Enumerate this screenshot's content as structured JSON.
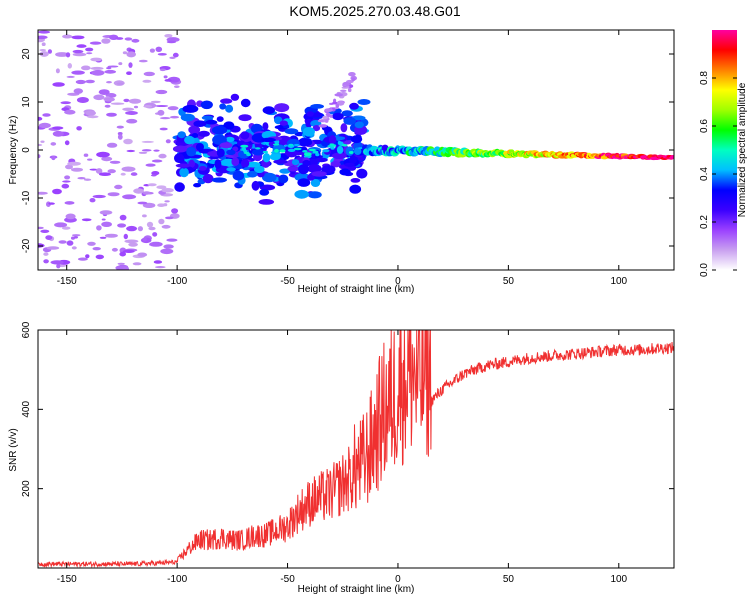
{
  "title": "KOM5.2025.270.03.48.G01",
  "chart_data": [
    {
      "id": "spectrogram",
      "type": "heatmap",
      "xlabel": "Height of straight line (km)",
      "ylabel": "Frequency (Hz)",
      "xlim": [
        -163,
        125
      ],
      "ylim": [
        -25,
        25
      ],
      "xticks": [
        -150,
        -100,
        -50,
        0,
        50,
        100
      ],
      "yticks": [
        -20,
        -10,
        0,
        10,
        20
      ],
      "colorbar": {
        "label": "Normalized spectral amplitude",
        "range": [
          0,
          1
        ],
        "ticks": [
          0.0,
          0.2,
          0.4,
          0.6,
          0.8
        ],
        "colors": [
          "#ffffff",
          "#c9a0f0",
          "#9a40ff",
          "#3a00ff",
          "#0000ff",
          "#00c0ff",
          "#00ffc0",
          "#00ff00",
          "#a0ff00",
          "#ffff00",
          "#ff8000",
          "#ff0000",
          "#ff00a0"
        ]
      },
      "regions": [
        {
          "name": "scattered noise",
          "x": [
            -163,
            -100
          ],
          "freq": [
            -25,
            25
          ],
          "amplitude": 0.12
        },
        {
          "name": "noise cluster",
          "x": [
            -100,
            -15
          ],
          "freq": [
            -8,
            5
          ],
          "amplitude": 0.3
        },
        {
          "name": "noise streak",
          "x": [
            -35,
            -20
          ],
          "freq": [
            5,
            15
          ],
          "amplitude": 0.12
        },
        {
          "name": "signal trace",
          "x": [
            -15,
            125
          ],
          "freq": [
            -2,
            0.5
          ],
          "amplitude": 0.85
        }
      ]
    },
    {
      "id": "snr",
      "type": "line",
      "xlabel": "Height of straight line (km)",
      "ylabel": "SNR (v/v)",
      "xlim": [
        -163,
        125
      ],
      "ylim": [
        0,
        600
      ],
      "xticks": [
        -150,
        -100,
        -50,
        0,
        50,
        100
      ],
      "yticks": [
        200,
        400,
        600
      ],
      "color": "#f03030",
      "series": [
        {
          "name": "SNR",
          "x": [
            -163,
            -150,
            -140,
            -130,
            -120,
            -110,
            -100,
            -95,
            -90,
            -85,
            -80,
            -75,
            -70,
            -65,
            -60,
            -55,
            -50,
            -45,
            -40,
            -35,
            -30,
            -25,
            -20,
            -17,
            -15,
            -12,
            -10,
            -8,
            -5,
            -2,
            0,
            3,
            6,
            9,
            12,
            15,
            20,
            25,
            30,
            35,
            40,
            50,
            60,
            70,
            80,
            90,
            100,
            110,
            120,
            125
          ],
          "values": [
            10,
            10,
            10,
            10,
            10,
            12,
            15,
            40,
            60,
            60,
            65,
            60,
            60,
            70,
            70,
            80,
            90,
            120,
            140,
            150,
            160,
            180,
            200,
            210,
            220,
            250,
            280,
            300,
            330,
            350,
            380,
            400,
            410,
            380,
            400,
            420,
            450,
            470,
            490,
            500,
            510,
            520,
            530,
            535,
            540,
            545,
            550,
            550,
            555,
            555
          ]
        }
      ]
    }
  ]
}
